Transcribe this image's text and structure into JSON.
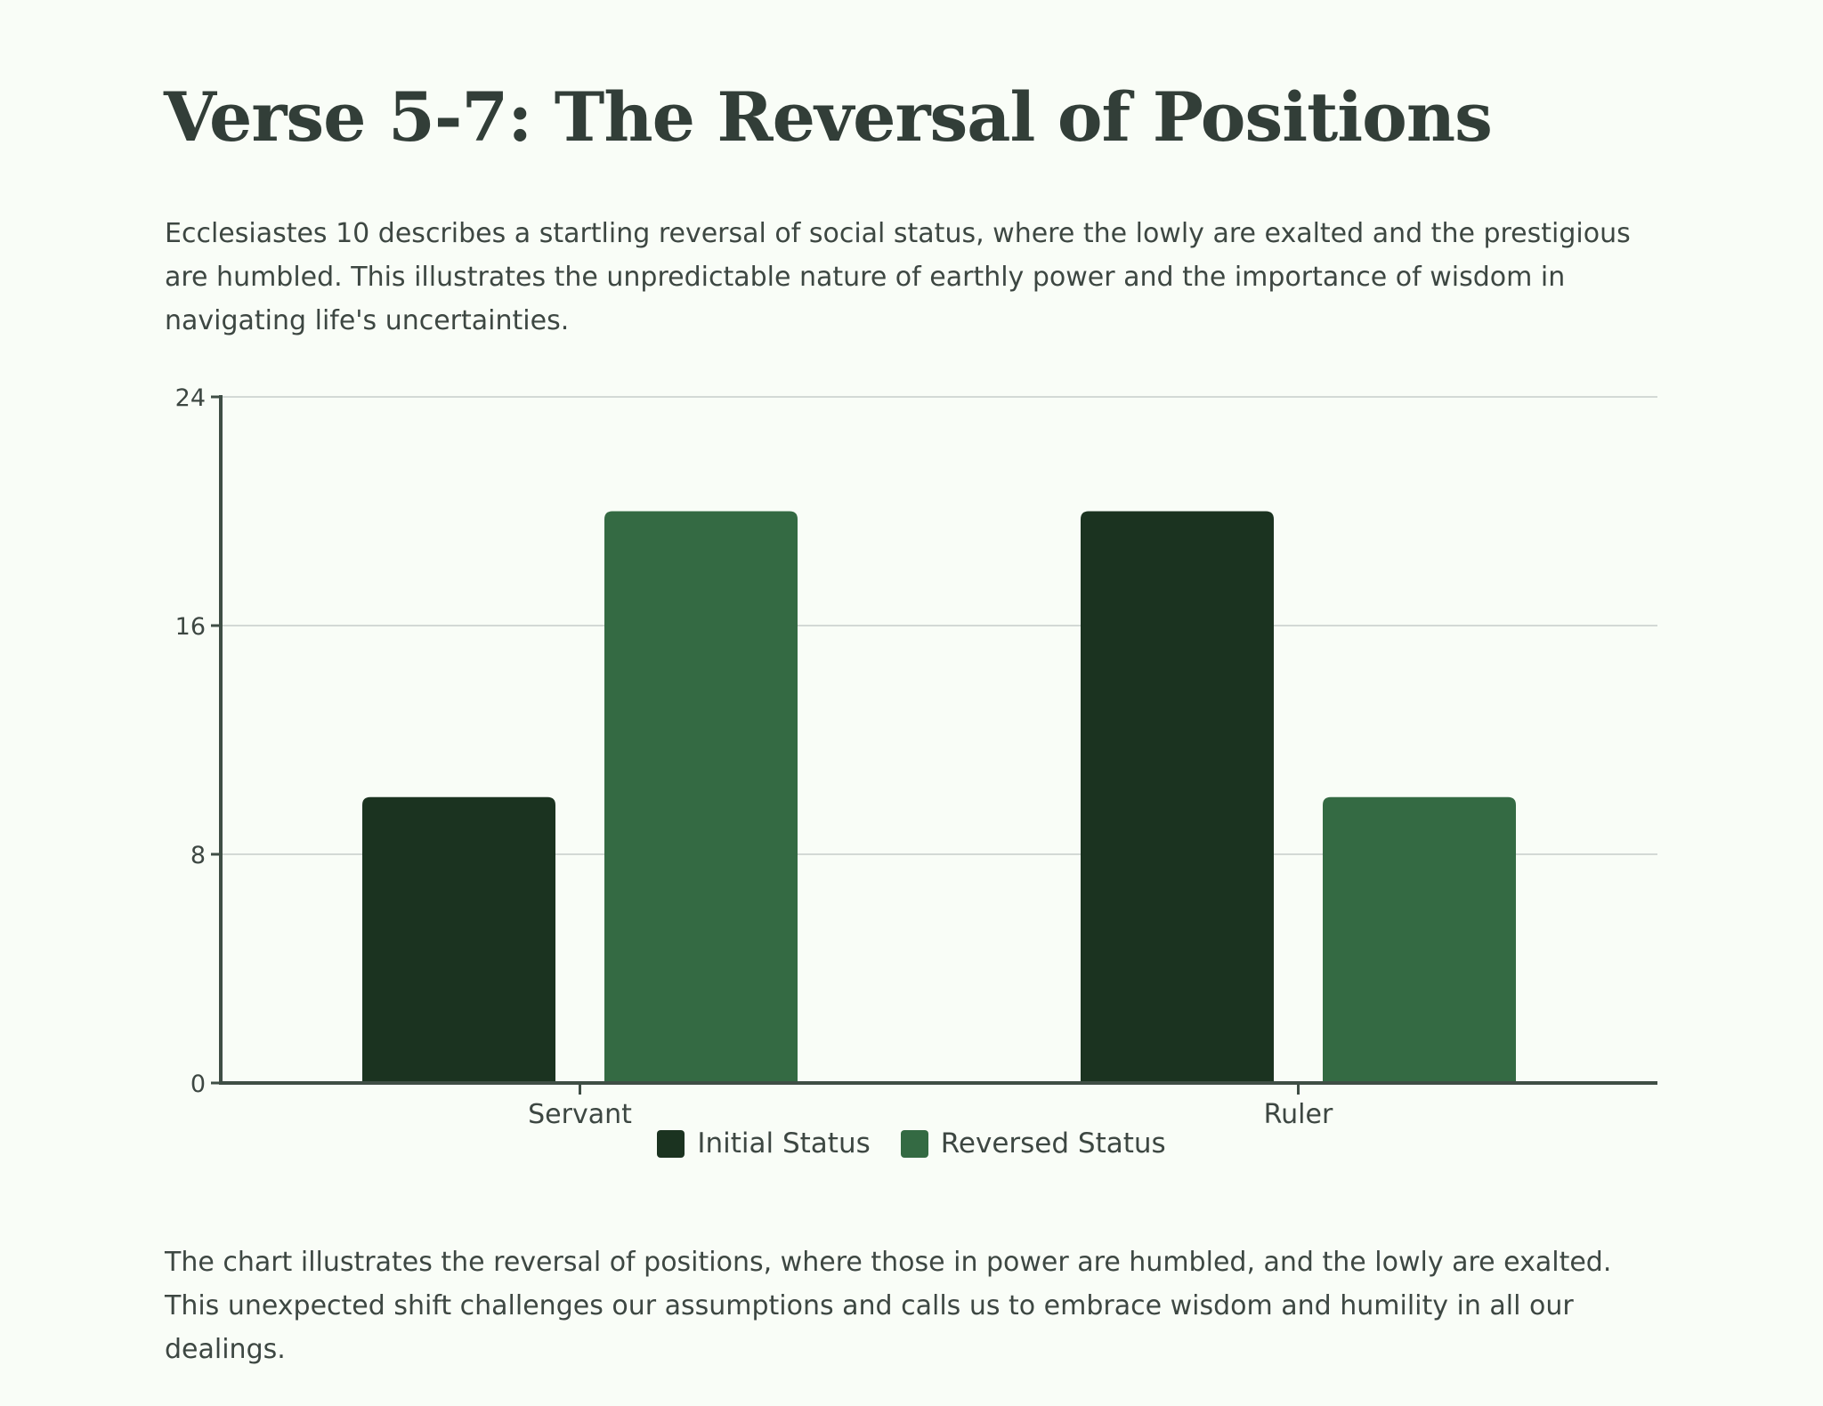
{
  "title": "Verse 5-7: The Reversal of Positions",
  "intro": "Ecclesiastes 10 describes a startling reversal of social status, where the lowly are exalted and the prestigious are humbled. This illustrates the unpredictable nature of earthly power and the importance of wisdom in navigating life's uncertainties.",
  "outro": "The chart illustrates the reversal of positions, where those in power are humbled, and the lowly are exalted. This unexpected shift challenges our assumptions and calls us to embrace wisdom and humility in all our dealings.",
  "colors": {
    "initial": "#1b3320",
    "reversed": "#346a43",
    "axis": "#3f4e45",
    "grid": "#d3d9d5"
  },
  "chart_data": {
    "type": "bar",
    "title": "",
    "xlabel": "",
    "ylabel": "",
    "categories": [
      "Servant",
      "Ruler"
    ],
    "series": [
      {
        "name": "Initial Status",
        "values": [
          10,
          20
        ]
      },
      {
        "name": "Reversed Status",
        "values": [
          20,
          10
        ]
      }
    ],
    "ylim": [
      0,
      24
    ],
    "yticks": [
      "0",
      "8",
      "16",
      "24"
    ],
    "grid": true,
    "legend_position": "bottom-center"
  }
}
